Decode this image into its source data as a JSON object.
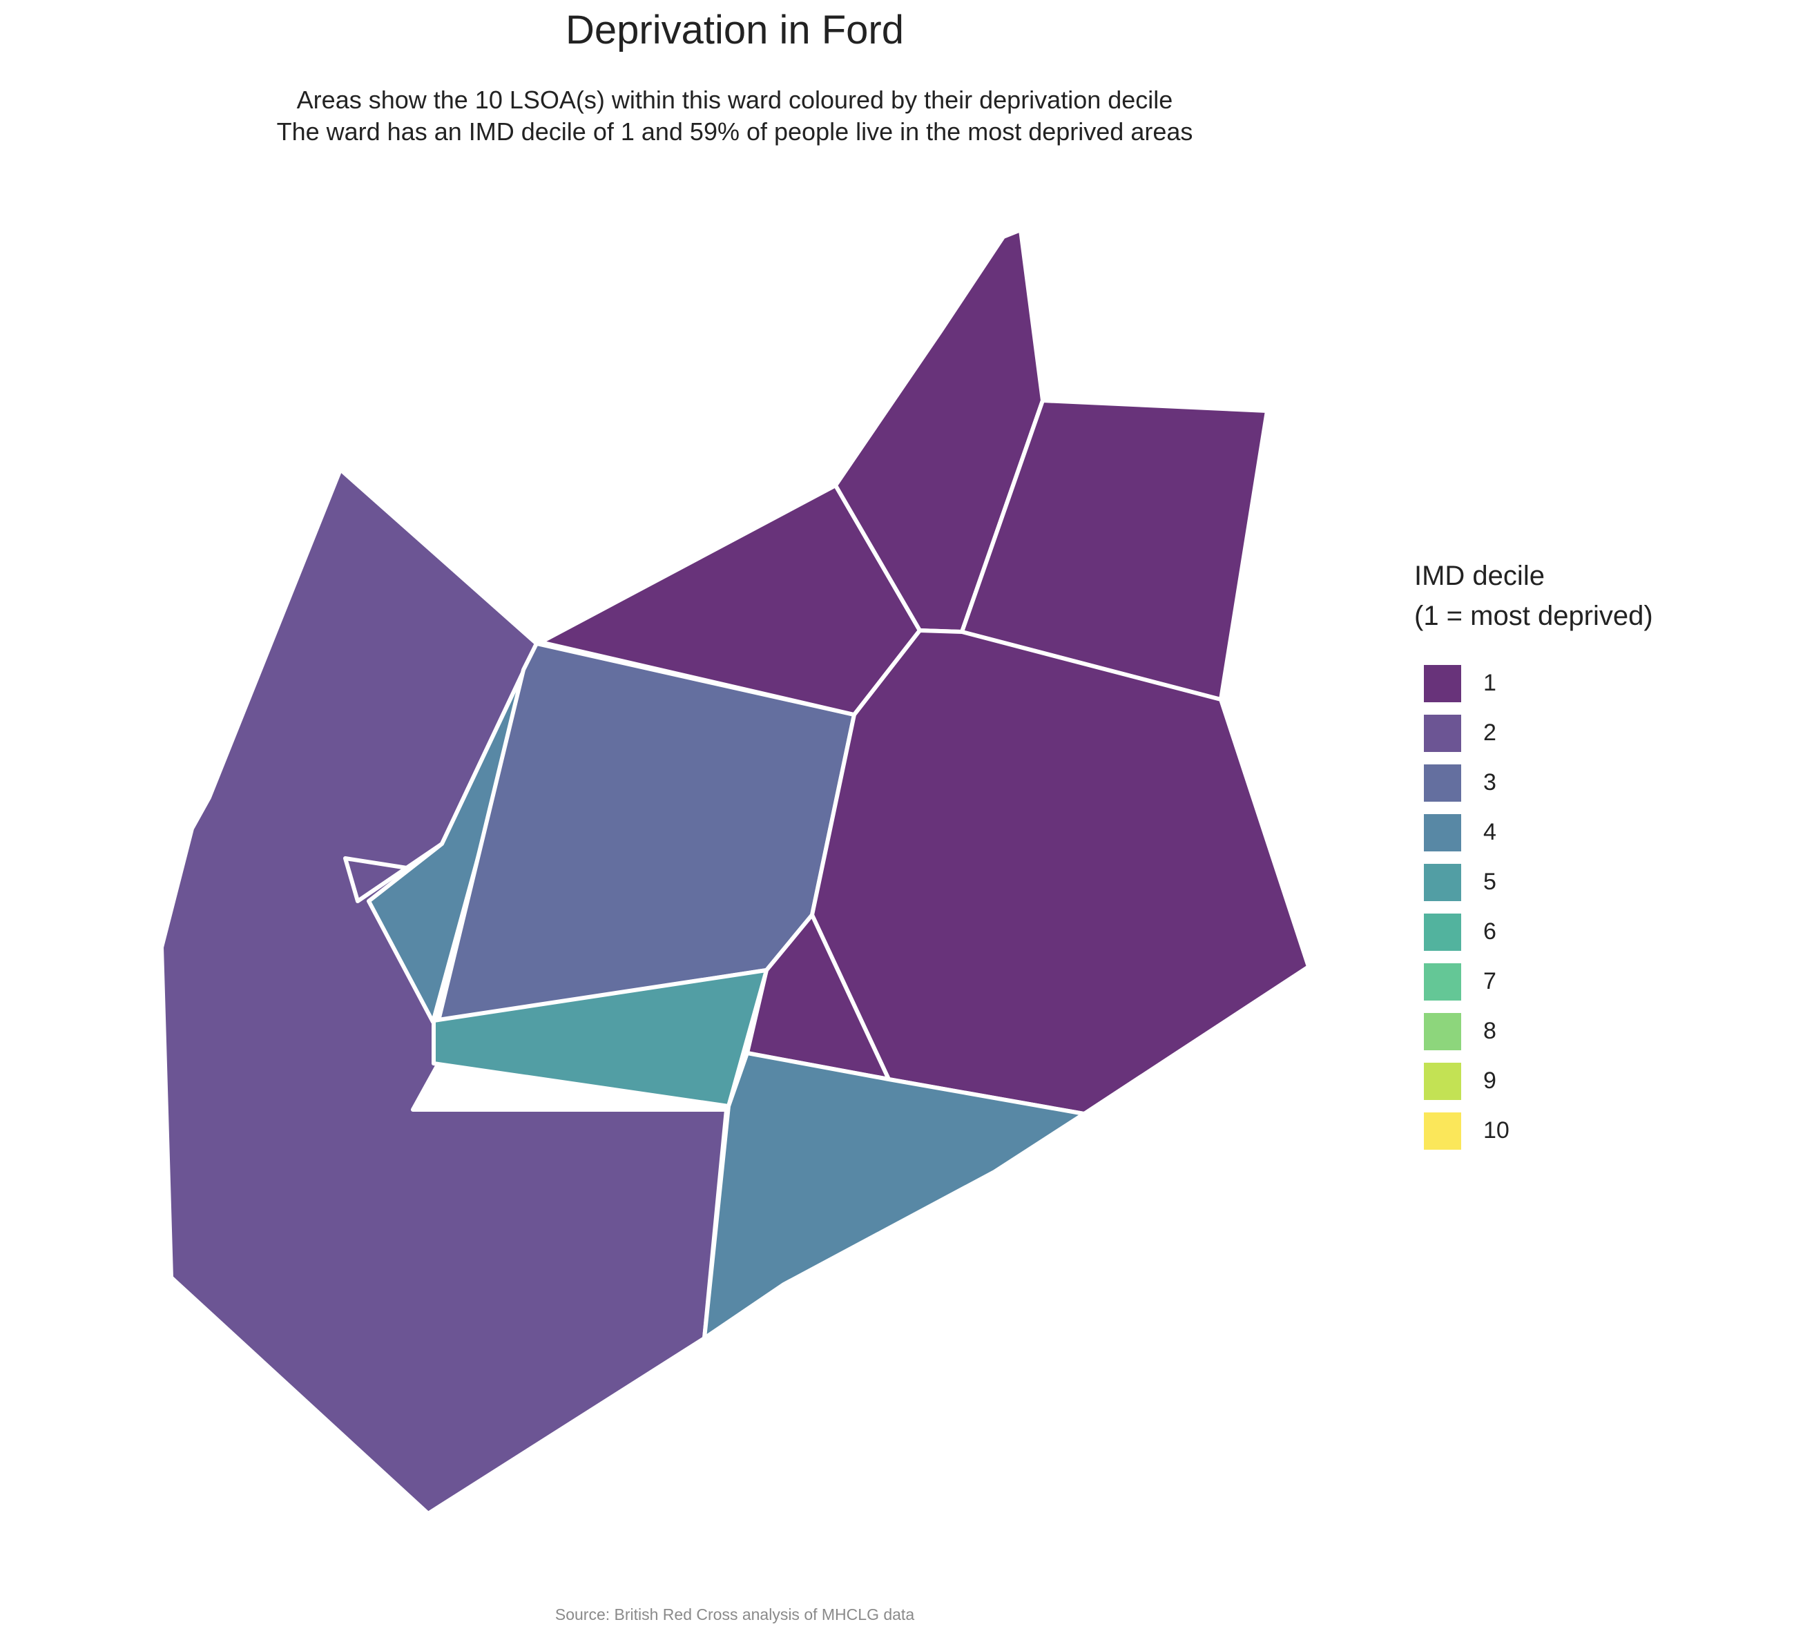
{
  "title": "Deprivation in Ford",
  "subtitle": {
    "line1": "Areas show the 10 LSOA(s) within this ward coloured by their deprivation decile",
    "line2": "The ward has an IMD decile of 1 and 59% of people live in the most deprived areas"
  },
  "caption": "Source: British Red Cross analysis of MHCLG data",
  "legend": {
    "title_line1": "IMD decile",
    "title_line2": "(1 = most deprived)",
    "items": [
      {
        "label": "1",
        "color": "#68337A"
      },
      {
        "label": "2",
        "color": "#6C5594"
      },
      {
        "label": "3",
        "color": "#646F9F"
      },
      {
        "label": "4",
        "color": "#5888A5"
      },
      {
        "label": "5",
        "color": "#529EA4"
      },
      {
        "label": "6",
        "color": "#52B39E"
      },
      {
        "label": "7",
        "color": "#64C796"
      },
      {
        "label": "8",
        "color": "#8DD67C"
      },
      {
        "label": "9",
        "color": "#C3E254"
      },
      {
        "label": "10",
        "color": "#FBE75A"
      }
    ]
  },
  "map": {
    "areas": [
      {
        "id": "lsoa-north-spike",
        "decile": 1
      },
      {
        "id": "lsoa-northeast",
        "decile": 1
      },
      {
        "id": "lsoa-north-central",
        "decile": 1
      },
      {
        "id": "lsoa-east-large",
        "decile": 1
      },
      {
        "id": "lsoa-central-triangle",
        "decile": 1
      },
      {
        "id": "lsoa-west-large",
        "decile": 2
      },
      {
        "id": "lsoa-central",
        "decile": 3
      },
      {
        "id": "lsoa-west-sliver",
        "decile": 4
      },
      {
        "id": "lsoa-southeast",
        "decile": 4
      },
      {
        "id": "lsoa-south-central-strip",
        "decile": 5
      }
    ]
  }
}
